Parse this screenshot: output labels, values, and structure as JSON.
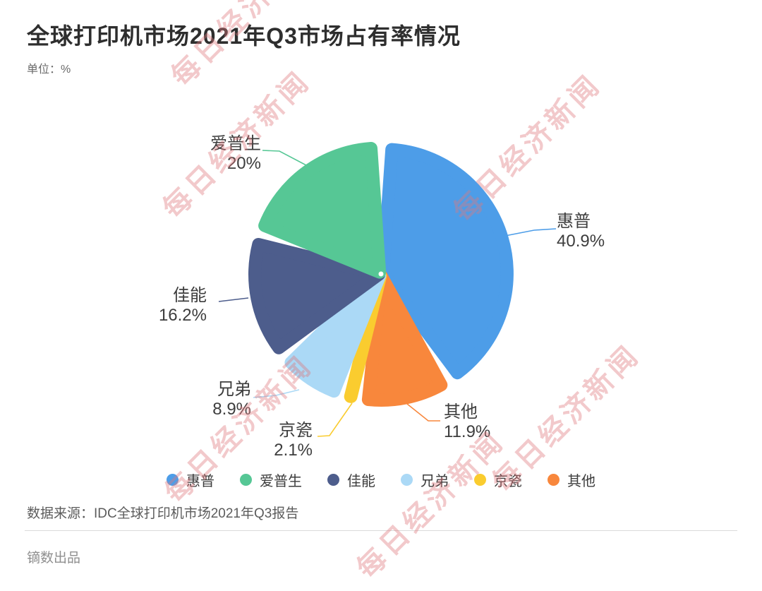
{
  "title": "全球打印机市场2021年Q3市场占有率情况",
  "unit_label": "单位：%",
  "watermark_text": "每日经济新闻",
  "source_note": "数据来源：IDC全球打印机市场2021年Q3报告",
  "credit_note": "镝数出品",
  "colors": {
    "hp": "#4D9DE8",
    "others": "#F8873C",
    "kyocera": "#FACC2F",
    "brother": "#ABD9F6",
    "canon": "#4D5D8C",
    "epson": "#56C795"
  },
  "chart_data": {
    "type": "pie",
    "title": "全球打印机市场2021年Q3市场占有率情况",
    "unit": "%",
    "start_angle_deg": 0,
    "direction": "clockwise",
    "legend_position": "bottom",
    "slices": [
      {
        "id": "hp",
        "label": "惠普",
        "value": 40.9,
        "display": "40.9%",
        "color": "#4D9DE8"
      },
      {
        "id": "others",
        "label": "其他",
        "value": 11.9,
        "display": "11.9%",
        "color": "#F8873C"
      },
      {
        "id": "kyocera",
        "label": "京瓷",
        "value": 2.1,
        "display": "2.1%",
        "color": "#FACC2F"
      },
      {
        "id": "brother",
        "label": "兄弟",
        "value": 8.9,
        "display": "8.9%",
        "color": "#ABD9F6"
      },
      {
        "id": "canon",
        "label": "佳能",
        "value": 16.2,
        "display": "16.2%",
        "color": "#4D5D8C"
      },
      {
        "id": "epson",
        "label": "爱普生",
        "value": 20,
        "display": "20%",
        "color": "#56C795"
      }
    ],
    "legend_order": [
      0,
      5,
      4,
      3,
      2,
      1
    ]
  }
}
